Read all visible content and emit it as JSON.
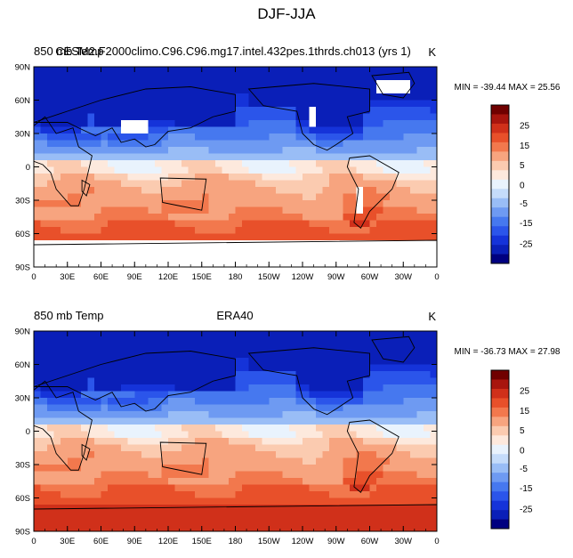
{
  "figure": {
    "title": "DJF-JJA"
  },
  "palette": [
    "#000080",
    "#0a1fb8",
    "#1533d9",
    "#2b55ea",
    "#4678ef",
    "#6e9af2",
    "#99bdf6",
    "#c5dcfa",
    "#e9f3fd",
    "#fde9dd",
    "#fbcbb0",
    "#f7a47f",
    "#f2784d",
    "#e8502a",
    "#d0301a",
    "#a8150e",
    "#700000"
  ],
  "chart_data": [
    {
      "type": "heatmap",
      "left_title": "850 mb Temp",
      "center_title": "CESM2.F2000climo.C96.C96.mg17.intel.432pes.1thrds.ch013 (yrs 1)",
      "units": "K",
      "min_max": "MIN = -39.44 MAX =  25.56",
      "min": -39.44,
      "max": 25.56,
      "x_ticks": [
        "0",
        "30E",
        "60E",
        "90E",
        "120E",
        "150E",
        "180",
        "150W",
        "120W",
        "90W",
        "60W",
        "30W",
        "0"
      ],
      "y_ticks": [
        "90N",
        "60N",
        "30N",
        "0",
        "30S",
        "60S",
        "90S"
      ],
      "colorbar_labels": [
        "25",
        "15",
        "5",
        "0",
        "-5",
        "-15",
        "-25"
      ],
      "missing_data_regions": [
        "Antarctica",
        "Tibetan Plateau",
        "Greenland",
        "Rocky Mountains",
        "Andes"
      ]
    },
    {
      "type": "heatmap",
      "left_title": "850 mb Temp",
      "center_title": "ERA40",
      "units": "K",
      "min_max": "MIN = -36.73 MAX =  27.98",
      "min": -36.73,
      "max": 27.98,
      "x_ticks": [
        "0",
        "30E",
        "60E",
        "90E",
        "120E",
        "150E",
        "180",
        "150W",
        "120W",
        "90W",
        "60W",
        "30W",
        "0"
      ],
      "y_ticks": [
        "90N",
        "60N",
        "30N",
        "0",
        "30S",
        "60S",
        "90S"
      ],
      "colorbar_labels": [
        "25",
        "15",
        "5",
        "0",
        "-5",
        "-15",
        "-25"
      ],
      "missing_data_regions": []
    }
  ]
}
